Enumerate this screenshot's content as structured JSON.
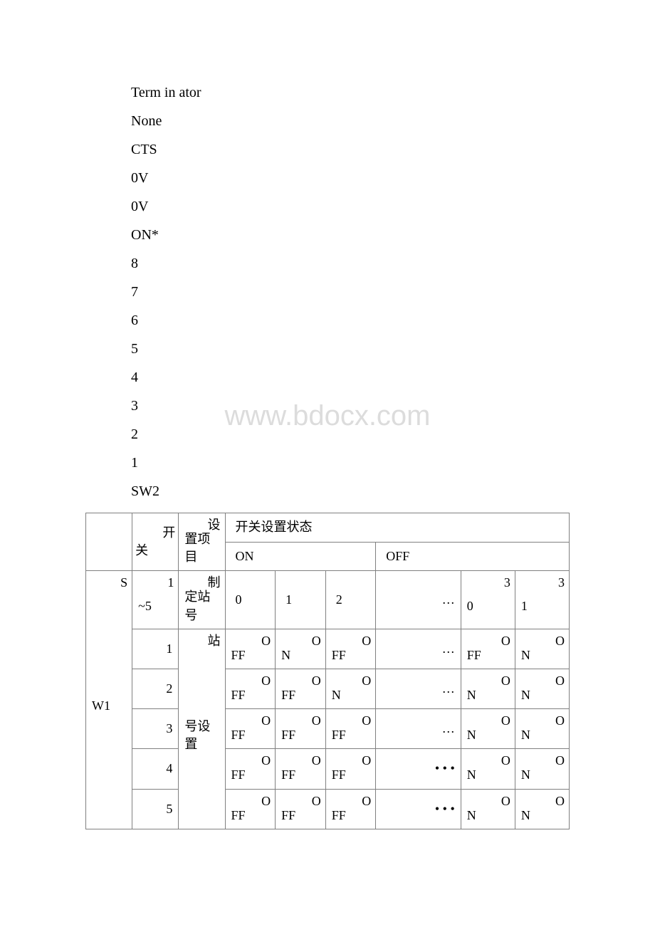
{
  "watermark": "www.bdocx.com",
  "lines": {
    "l1": "Term in ator",
    "l2": "None",
    "l3": "CTS",
    "l4": "0V",
    "l5": "0V",
    "l6": "ON*",
    "l7": "8",
    "l8": "7",
    "l9": "6",
    "l10": "5",
    "l11": "4",
    "l12": "3",
    "l13": "2",
    "l14": "1",
    "l15": "SW2"
  },
  "table": {
    "hdr": {
      "switch": "开关",
      "item_a": "设",
      "item_b": "置项目",
      "state_title": "开关设置状态",
      "on": "ON",
      "off": "OFF"
    },
    "sw1": {
      "label_a": "S",
      "label_b": "W1",
      "row_station": {
        "num_a": "1",
        "num_b": "~5",
        "item_a": "制",
        "item_b": "定站号",
        "v1": "0",
        "v2": "1",
        "v3": "2",
        "v4": "…",
        "v5a": "3",
        "v5b": "0",
        "v6a": "3",
        "v6b": "1"
      },
      "station_set_a": "站",
      "station_set_b": "号设置",
      "r1": {
        "num": "1",
        "v1a": "O",
        "v1b": "FF",
        "v2a": "O",
        "v2b": "N",
        "v3a": "O",
        "v3b": "FF",
        "v4": "…",
        "v5a": "O",
        "v5b": "FF",
        "v6a": "O",
        "v6b": "N"
      },
      "r2": {
        "num": "2",
        "v1a": "O",
        "v1b": "FF",
        "v2a": "O",
        "v2b": "FF",
        "v3a": "O",
        "v3b": "N",
        "v4": "…",
        "v5a": "O",
        "v5b": "N",
        "v6a": "O",
        "v6b": "N"
      },
      "r3": {
        "num": "3",
        "v1a": "O",
        "v1b": "FF",
        "v2a": "O",
        "v2b": "FF",
        "v3a": "O",
        "v3b": "FF",
        "v4": "…",
        "v5a": "O",
        "v5b": "N",
        "v6a": "O",
        "v6b": "N"
      },
      "r4": {
        "num": "4",
        "v1a": "O",
        "v1b": "FF",
        "v2a": "O",
        "v2b": "FF",
        "v3a": "O",
        "v3b": "FF",
        "v4": "•  • •",
        "v5a": "O",
        "v5b": "N",
        "v6a": "O",
        "v6b": "N"
      },
      "r5": {
        "num": "5",
        "v1a": "O",
        "v1b": "FF",
        "v2a": "O",
        "v2b": "FF",
        "v3a": "O",
        "v3b": "FF",
        "v4": "•  • •",
        "v5a": "O",
        "v5b": "N",
        "v6a": "O",
        "v6b": "N"
      }
    }
  }
}
